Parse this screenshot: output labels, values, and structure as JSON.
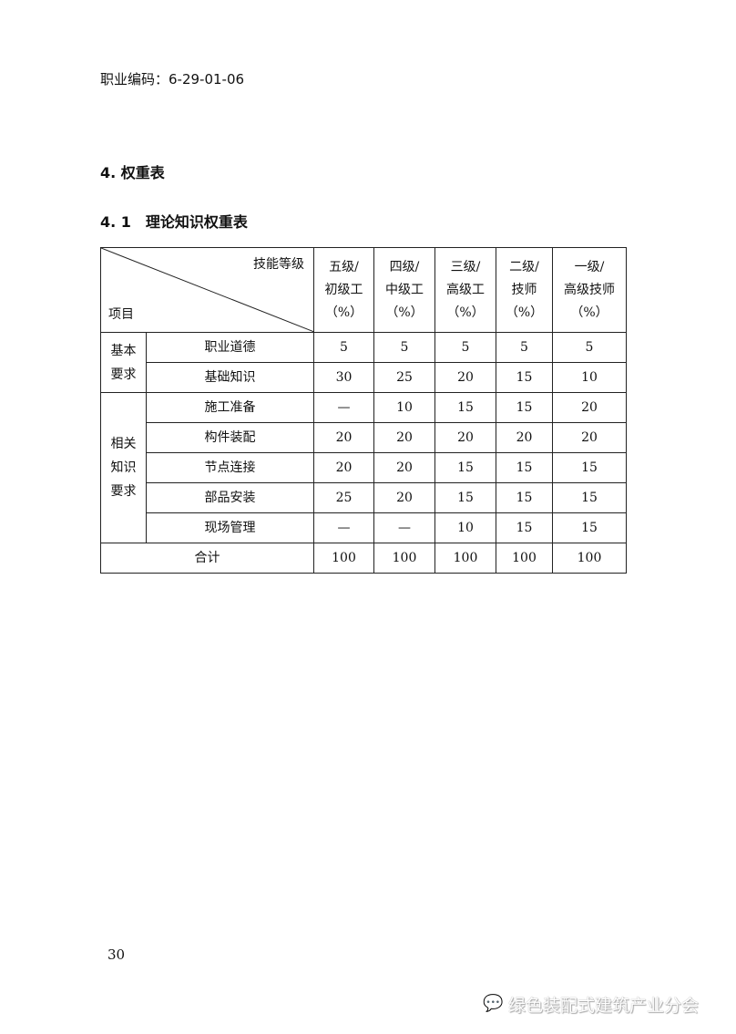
{
  "occupation_code": "职业编码：6-29-01-06",
  "section_title": "4. 权重表",
  "subsection_title": "4. 1　理论知识权重表",
  "table": {
    "corner_top": "技能等级",
    "corner_bottom": "项目",
    "levels": [
      {
        "line1": "五级/",
        "line2": "初级工",
        "line3": "（%）"
      },
      {
        "line1": "四级/",
        "line2": "中级工",
        "line3": "（%）"
      },
      {
        "line1": "三级/",
        "line2": "高级工",
        "line3": "（%）"
      },
      {
        "line1": "二级/",
        "line2": "技师",
        "line3": "（%）"
      },
      {
        "line1": "一级/",
        "line2": "高级技师",
        "line3": "（%）"
      }
    ],
    "groups": [
      {
        "line1": "基本",
        "line2": "要求"
      },
      {
        "line1": "相关",
        "line2": "知识",
        "line3": "要求"
      }
    ],
    "rows": [
      {
        "item": "职业道德",
        "values": [
          "5",
          "5",
          "5",
          "5",
          "5"
        ]
      },
      {
        "item": "基础知识",
        "values": [
          "30",
          "25",
          "20",
          "15",
          "10"
        ]
      },
      {
        "item": "施工准备",
        "values": [
          "—",
          "10",
          "15",
          "15",
          "20"
        ]
      },
      {
        "item": "构件装配",
        "values": [
          "20",
          "20",
          "20",
          "20",
          "20"
        ]
      },
      {
        "item": "节点连接",
        "values": [
          "20",
          "20",
          "15",
          "15",
          "15"
        ]
      },
      {
        "item": "部品安装",
        "values": [
          "25",
          "20",
          "15",
          "15",
          "15"
        ]
      },
      {
        "item": "现场管理",
        "values": [
          "—",
          "—",
          "10",
          "15",
          "15"
        ]
      }
    ],
    "total": {
      "label": "合计",
      "values": [
        "100",
        "100",
        "100",
        "100",
        "100"
      ]
    }
  },
  "page_number": "30",
  "watermark": {
    "icon": "wechat-icon",
    "text": "绿色装配式建筑产业分会"
  }
}
